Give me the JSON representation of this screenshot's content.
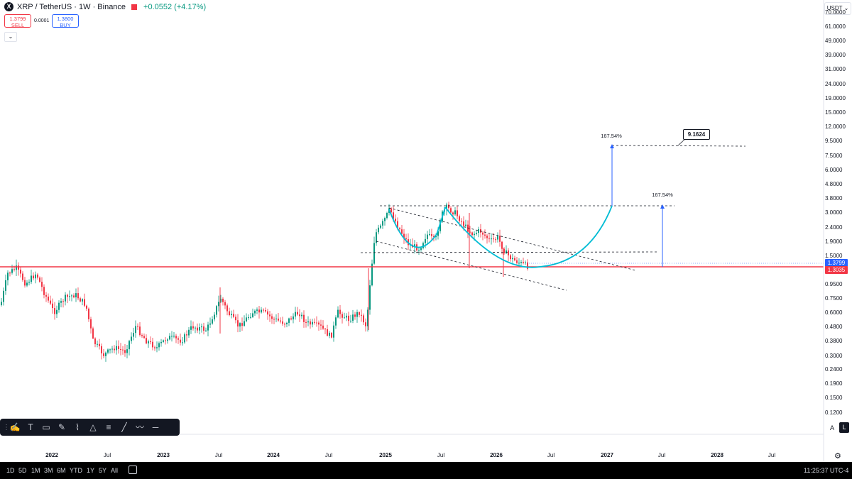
{
  "header": {
    "symbol_logo": "X",
    "title": "XRP / TetherUS · 1W · Binance",
    "change": "+0.0552 (+4.17%)",
    "sell_price": "1.3799",
    "sell_label": "SELL",
    "spread": "0.0001",
    "buy_price": "1.3800",
    "buy_label": "BUY",
    "collapse_icon": "chevron-down-icon"
  },
  "currency": "USDT ⌄",
  "price_axis": [
    "70.0000",
    "61.0000",
    "49.0000",
    "39.0000",
    "31.0000",
    "24.0000",
    "19.0000",
    "15.0000",
    "12.0000",
    "9.5000",
    "7.5000",
    "6.0000",
    "4.8000",
    "3.8000",
    "3.0000",
    "2.4000",
    "1.9000",
    "1.5000",
    "0.9500",
    "0.7500",
    "0.6000",
    "0.4800",
    "0.3800",
    "0.3000",
    "0.2400",
    "0.1900",
    "0.1500",
    "0.1200"
  ],
  "current_price_tag": "1.3799",
  "level_price_tag": "1.3035",
  "colors": {
    "up": "#089981",
    "down": "#f23645",
    "level_line": "#f23645",
    "curve": "#00bcd4",
    "arrow": "#2962ff",
    "tag_current": "#2962ff",
    "tag_level": "#f23645"
  },
  "annotations": {
    "measure_1": "167.54%",
    "measure_2": "167.54%",
    "target": "9.1624"
  },
  "time_axis": [
    {
      "label": "2022",
      "bold": true
    },
    {
      "label": "Jul",
      "bold": false
    },
    {
      "label": "2023",
      "bold": true
    },
    {
      "label": "Jul",
      "bold": false
    },
    {
      "label": "2024",
      "bold": true
    },
    {
      "label": "Jul",
      "bold": false
    },
    {
      "label": "2025",
      "bold": true
    },
    {
      "label": "Jul",
      "bold": false
    },
    {
      "label": "2026",
      "bold": true
    },
    {
      "label": "Jul",
      "bold": false
    },
    {
      "label": "2027",
      "bold": true
    },
    {
      "label": "Jul",
      "bold": false
    },
    {
      "label": "2028",
      "bold": true
    },
    {
      "label": "Jul",
      "bold": false
    }
  ],
  "drawing_toolbar": {
    "icons": [
      "brush-icon",
      "text-icon",
      "note-icon",
      "pen-icon",
      "highlighter-icon",
      "path-icon",
      "fib-icon",
      "line-icon",
      "polyline-icon",
      "horizontal-line-icon"
    ]
  },
  "periods": [
    "1D",
    "5D",
    "1M",
    "3M",
    "6M",
    "YTD",
    "1Y",
    "5Y",
    "All"
  ],
  "calendar_icon": "calendar-icon",
  "clock": "11:25:37 UTC-4",
  "scale_auto": "A",
  "scale_log": "L",
  "settings_icon": "gear-icon"
}
